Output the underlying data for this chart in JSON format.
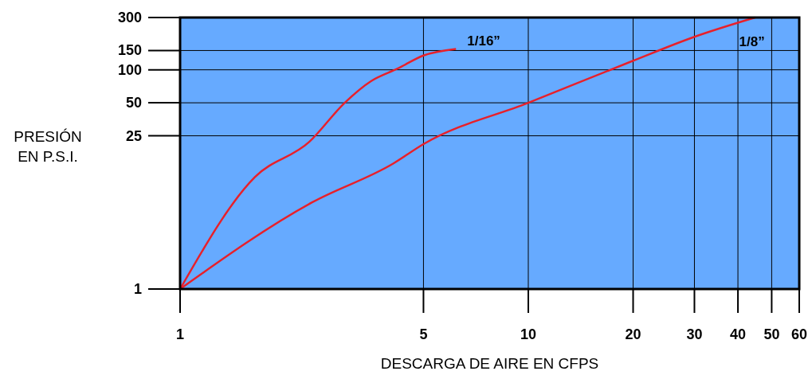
{
  "chart_data": {
    "type": "line",
    "xlabel": "DESCARGA DE AIRE EN CFPS",
    "ylabel": "PRESIÓN EN P.S.I.",
    "log": "xy",
    "grid": true,
    "marker": "none",
    "line_style": "solid",
    "xlim": [
      1,
      60
    ],
    "xticks": [
      1,
      5,
      10,
      20,
      30,
      40,
      50,
      60
    ],
    "ylim": [
      1,
      300
    ],
    "yticks": [
      1,
      25,
      50,
      100,
      150,
      300
    ],
    "series": [
      {
        "name": "1/16”",
        "color": "#e8202a",
        "x": [
          1,
          1.64,
          2.35,
          2.97,
          3.54,
          4.2,
          5,
          6.2
        ],
        "values": [
          1,
          10.5,
          22,
          50,
          79,
          102,
          135,
          155
        ]
      },
      {
        "name": "1/8”",
        "color": "#e8202a",
        "x": [
          1,
          2.4,
          4.1,
          5,
          10,
          20,
          30,
          44.8
        ],
        "values": [
          1,
          6.2,
          14,
          21,
          50,
          121,
          200,
          300
        ]
      }
    ]
  }
}
